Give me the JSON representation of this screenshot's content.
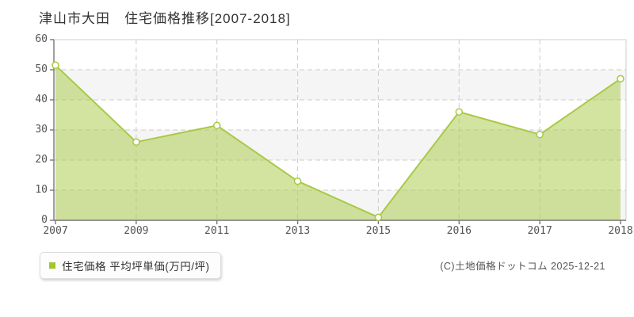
{
  "page": {
    "title": "津山市大田　住宅価格推移[2007-2018]"
  },
  "legend": {
    "label": "住宅価格 平均坪単価(万円/坪)",
    "marker_color": "#a0c828"
  },
  "footer": {
    "copyright": "(C)土地価格ドットコム 2025-12-21"
  },
  "chart_data": {
    "type": "area",
    "title": "津山市大田 住宅価格推移[2007-2018]",
    "categories": [
      "2007",
      "2009",
      "2011",
      "2013",
      "2015",
      "2016",
      "2017",
      "2018"
    ],
    "values": [
      51.5,
      26,
      31.5,
      13,
      1,
      36,
      28.5,
      47
    ],
    "series_name": "住宅価格 平均坪単価",
    "unit": "万円/坪",
    "xlabel": "",
    "ylabel": "",
    "ylim": [
      0,
      60
    ],
    "y_ticks": [
      0,
      10,
      20,
      30,
      40,
      50,
      60
    ],
    "grid": "dashed",
    "legend_position": "bottom-left",
    "colors": {
      "line": "#a8c944",
      "fill": "#a8c944",
      "fill_opacity": 0.5,
      "marker_fill": "#ffffff",
      "band_gray": "#f5f5f5",
      "band_white": "#ffffff",
      "grid": "#cccccc",
      "axis_dark": "#777777",
      "axis_light": "#cccccc"
    }
  }
}
